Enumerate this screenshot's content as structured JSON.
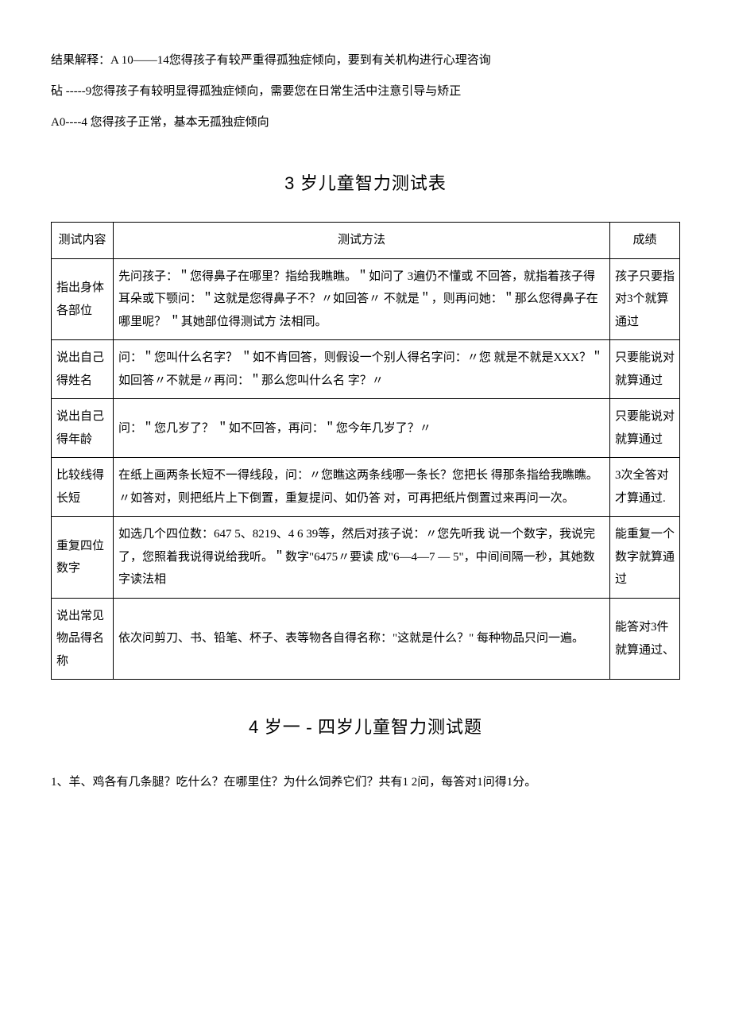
{
  "intro": {
    "line1": "结果解释：A 10——14您得孩子有较严重得孤独症倾向，要到有关机构进行心理咨询",
    "line2": "砧 -----9您得孩子有较明显得孤独症倾向，需要您在日常生活中注意引导与矫正",
    "line3": "A0----4 您得孩子正常，基本无孤独症倾向"
  },
  "section3": {
    "title_prefix": "3",
    "title_rest": " 岁儿童智力测试表",
    "headers": {
      "c1": "测试内容",
      "c2": "测试方法",
      "c3": "成绩"
    },
    "rows": [
      {
        "c1": "指出身体各部位",
        "c2": "先问孩子：＂您得鼻子在哪里？指给我瞧瞧。＂如问了 3遍仍不懂或 不回答，就指着孩子得耳朵或下颚问：＂这就是您得鼻子不？〃如回答〃 不就是＂，则再问她：＂那么您得鼻子在哪里呢？ ＂其她部位得测试方 法相同。",
        "c3": "孩子只要指对3个就算通过"
      },
      {
        "c1": "说出自己得姓名",
        "c2": "问：＂您叫什么名字？ ＂如不肯回答，则假设一个别人得名字问：〃您 就是不就是XXX？＂如回答〃不就是〃再问：＂那么您叫什么名 字？〃",
        "c3": "只要能说对就算通过"
      },
      {
        "c1": "说出自己得年龄",
        "c2": "问：＂您几岁了？ ＂如不回答，再问：＂您今年几岁了？〃",
        "c3": "只要能说对就算通过"
      },
      {
        "c1": "比较线得长短",
        "c2": "在纸上画两条长短不一得线段，问：〃您瞧这两条线哪一条长？您把长 得那条指给我瞧瞧。〃如答对，则把纸片上下倒置，重复提问、如仍答 对，可再把纸片倒置过来再问一次。",
        "c3": "3次全答对才算通过."
      },
      {
        "c1": "重复四位数字",
        "c2": "如选几个四位数：647 5、8219、4 6 39等，然后对孩子说：〃您先听我 说一个数字，我说完了，您照着我说得说给我听。＂数字\"6475〃要读 成\"6—4—7 — 5\"，中间间隔一秒，其她数字读法相",
        "c3": "能重复一个数字就算通过"
      },
      {
        "c1": "说出常见物品得名称",
        "c2": "依次问剪刀、书、铅笔、杯子、表等物各自得名称：\"这就是什么？\" 每种物品只问一遍。",
        "c3": "能答对3件就算通过、"
      }
    ]
  },
  "section4": {
    "title_prefix": "4",
    "title_rest": " 岁一 - 四岁儿童智力测试题",
    "q1": "1、羊、鸡各有几条腿？吃什么？在哪里住？为什么饲养它们？共有1 2问，每答对1问得1分。"
  }
}
